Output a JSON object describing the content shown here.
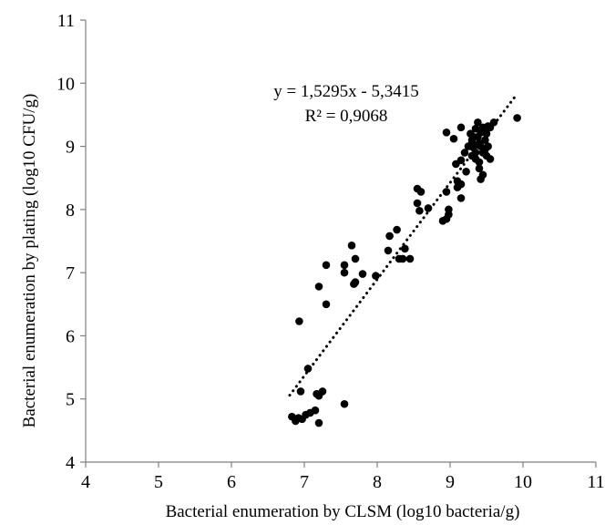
{
  "chart_data": {
    "type": "scatter",
    "title": "",
    "xlabel": "Bacterial enumeration by CLSM (log10 bacteria/g)",
    "ylabel": "Bacterial enumeration by plating (log10 CFU/g)",
    "xlim": [
      4,
      11
    ],
    "ylim": [
      4,
      11
    ],
    "xticks": [
      "4",
      "5",
      "6",
      "7",
      "8",
      "9",
      "10",
      "11"
    ],
    "yticks": [
      "4",
      "5",
      "6",
      "7",
      "8",
      "9",
      "10",
      "11"
    ],
    "grid": false,
    "legend": "none",
    "marker_color": "#000000",
    "trendline": {
      "style": "dotted",
      "slope": 1.5295,
      "intercept": -5.3415,
      "x_range": [
        6.8,
        9.9
      ],
      "equation": "y = 1,5295x - 5,3415",
      "r_squared": "R² = 0,9068"
    },
    "points": [
      [
        6.83,
        4.72
      ],
      [
        6.88,
        4.65
      ],
      [
        6.97,
        4.68
      ],
      [
        7.02,
        4.75
      ],
      [
        7.08,
        4.78
      ],
      [
        7.15,
        4.82
      ],
      [
        7.2,
        4.62
      ],
      [
        6.92,
        4.7
      ],
      [
        7.25,
        5.12
      ],
      [
        7.2,
        5.05
      ],
      [
        7.17,
        5.08
      ],
      [
        6.95,
        5.12
      ],
      [
        7.55,
        4.92
      ],
      [
        7.05,
        5.48
      ],
      [
        6.93,
        6.23
      ],
      [
        7.2,
        6.78
      ],
      [
        7.3,
        6.5
      ],
      [
        7.3,
        7.12
      ],
      [
        7.55,
        7.12
      ],
      [
        7.55,
        7.0
      ],
      [
        7.65,
        7.43
      ],
      [
        7.7,
        7.22
      ],
      [
        7.7,
        6.85
      ],
      [
        7.68,
        6.82
      ],
      [
        7.8,
        6.98
      ],
      [
        7.98,
        6.95
      ],
      [
        8.15,
        7.35
      ],
      [
        8.17,
        7.58
      ],
      [
        8.27,
        7.68
      ],
      [
        8.3,
        7.22
      ],
      [
        8.35,
        7.22
      ],
      [
        8.38,
        7.38
      ],
      [
        8.45,
        7.22
      ],
      [
        8.55,
        8.33
      ],
      [
        8.55,
        8.1
      ],
      [
        8.6,
        8.28
      ],
      [
        8.58,
        7.98
      ],
      [
        8.7,
        8.02
      ],
      [
        8.9,
        7.82
      ],
      [
        8.95,
        7.85
      ],
      [
        8.98,
        8.0
      ],
      [
        8.98,
        7.92
      ],
      [
        8.95,
        8.28
      ],
      [
        9.1,
        8.35
      ],
      [
        9.15,
        8.4
      ],
      [
        9.1,
        8.45
      ],
      [
        9.15,
        8.18
      ],
      [
        8.95,
        9.22
      ],
      [
        9.05,
        9.12
      ],
      [
        9.15,
        9.3
      ],
      [
        9.08,
        8.72
      ],
      [
        9.15,
        8.78
      ],
      [
        9.2,
        8.9
      ],
      [
        9.22,
        8.6
      ],
      [
        9.25,
        9.0
      ],
      [
        9.28,
        9.2
      ],
      [
        9.3,
        9.1
      ],
      [
        9.3,
        8.85
      ],
      [
        9.32,
        8.98
      ],
      [
        9.35,
        9.28
      ],
      [
        9.35,
        8.9
      ],
      [
        9.38,
        9.38
      ],
      [
        9.38,
        9.15
      ],
      [
        9.4,
        9.05
      ],
      [
        9.4,
        8.75
      ],
      [
        9.4,
        8.65
      ],
      [
        9.42,
        9.22
      ],
      [
        9.42,
        9.0
      ],
      [
        9.45,
        8.9
      ],
      [
        9.45,
        8.55
      ],
      [
        9.45,
        9.3
      ],
      [
        9.48,
        9.1
      ],
      [
        9.48,
        8.95
      ],
      [
        9.5,
        8.85
      ],
      [
        9.5,
        9.2
      ],
      [
        9.52,
        9.32
      ],
      [
        9.52,
        9.0
      ],
      [
        9.55,
        8.8
      ],
      [
        9.55,
        9.3
      ],
      [
        9.6,
        9.38
      ],
      [
        9.3,
        9.05
      ],
      [
        9.35,
        8.8
      ],
      [
        9.32,
        9.15
      ],
      [
        9.42,
        8.48
      ],
      [
        9.92,
        9.45
      ]
    ]
  }
}
